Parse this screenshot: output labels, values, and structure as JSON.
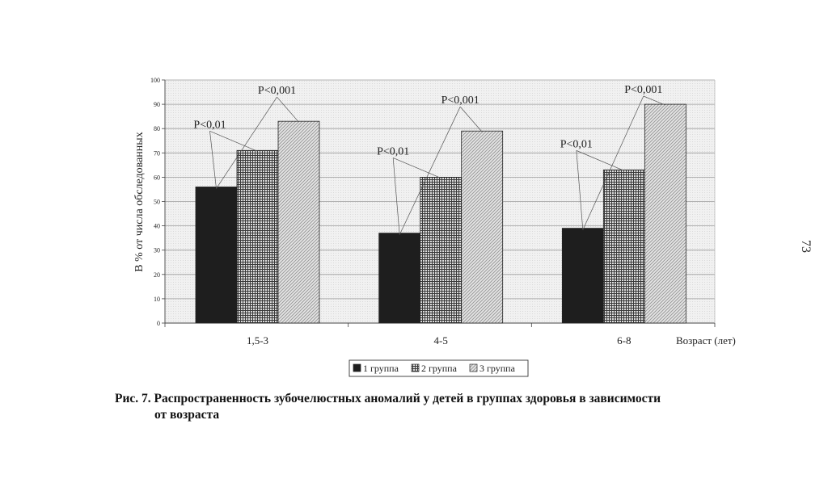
{
  "page_number": "73",
  "caption": {
    "line1": "Рис. 7. Распространенность зубочелюстных аномалий у детей в группах здоровья в зависимости",
    "line2": "от возраста"
  },
  "chart_data": {
    "type": "bar",
    "title": "",
    "ylabel": "В % от числа обследованных",
    "xlabel": "Возраст (лет)",
    "ylim": [
      0,
      100
    ],
    "yticks": [
      "0",
      "10",
      "20",
      "30",
      "40",
      "50",
      "60",
      "70",
      "80",
      "90",
      "100"
    ],
    "categories": [
      "1,5-3",
      "4-5",
      "6-8"
    ],
    "grid": true,
    "legend_position": "bottom-center",
    "series": [
      {
        "name": "1 группа",
        "values": [
          56,
          37,
          39
        ],
        "fill": "dark",
        "color": "#1e1e1e"
      },
      {
        "name": "2 группа",
        "values": [
          71,
          60,
          63
        ],
        "fill": "crosshatch",
        "color": "#4a4a4a"
      },
      {
        "name": "3 группа",
        "values": [
          83,
          79,
          90
        ],
        "fill": "light-hatch",
        "color": "#c8c8c8"
      }
    ],
    "annotations": [
      {
        "category": "1,5-3",
        "text": "P<0,01",
        "links": [
          "1 группа",
          "2 группа"
        ]
      },
      {
        "category": "1,5-3",
        "text": "P<0,001",
        "links": [
          "1 группа",
          "3 группа"
        ]
      },
      {
        "category": "4-5",
        "text": "P<0,01",
        "links": [
          "1 группа",
          "2 группа"
        ]
      },
      {
        "category": "4-5",
        "text": "P<0,001",
        "links": [
          "1 группа",
          "3 группа"
        ]
      },
      {
        "category": "6-8",
        "text": "P<0,01",
        "links": [
          "1 группа",
          "2 группа"
        ]
      },
      {
        "category": "6-8",
        "text": "P<0,001",
        "links": [
          "1 группа",
          "3 группа"
        ]
      }
    ]
  }
}
